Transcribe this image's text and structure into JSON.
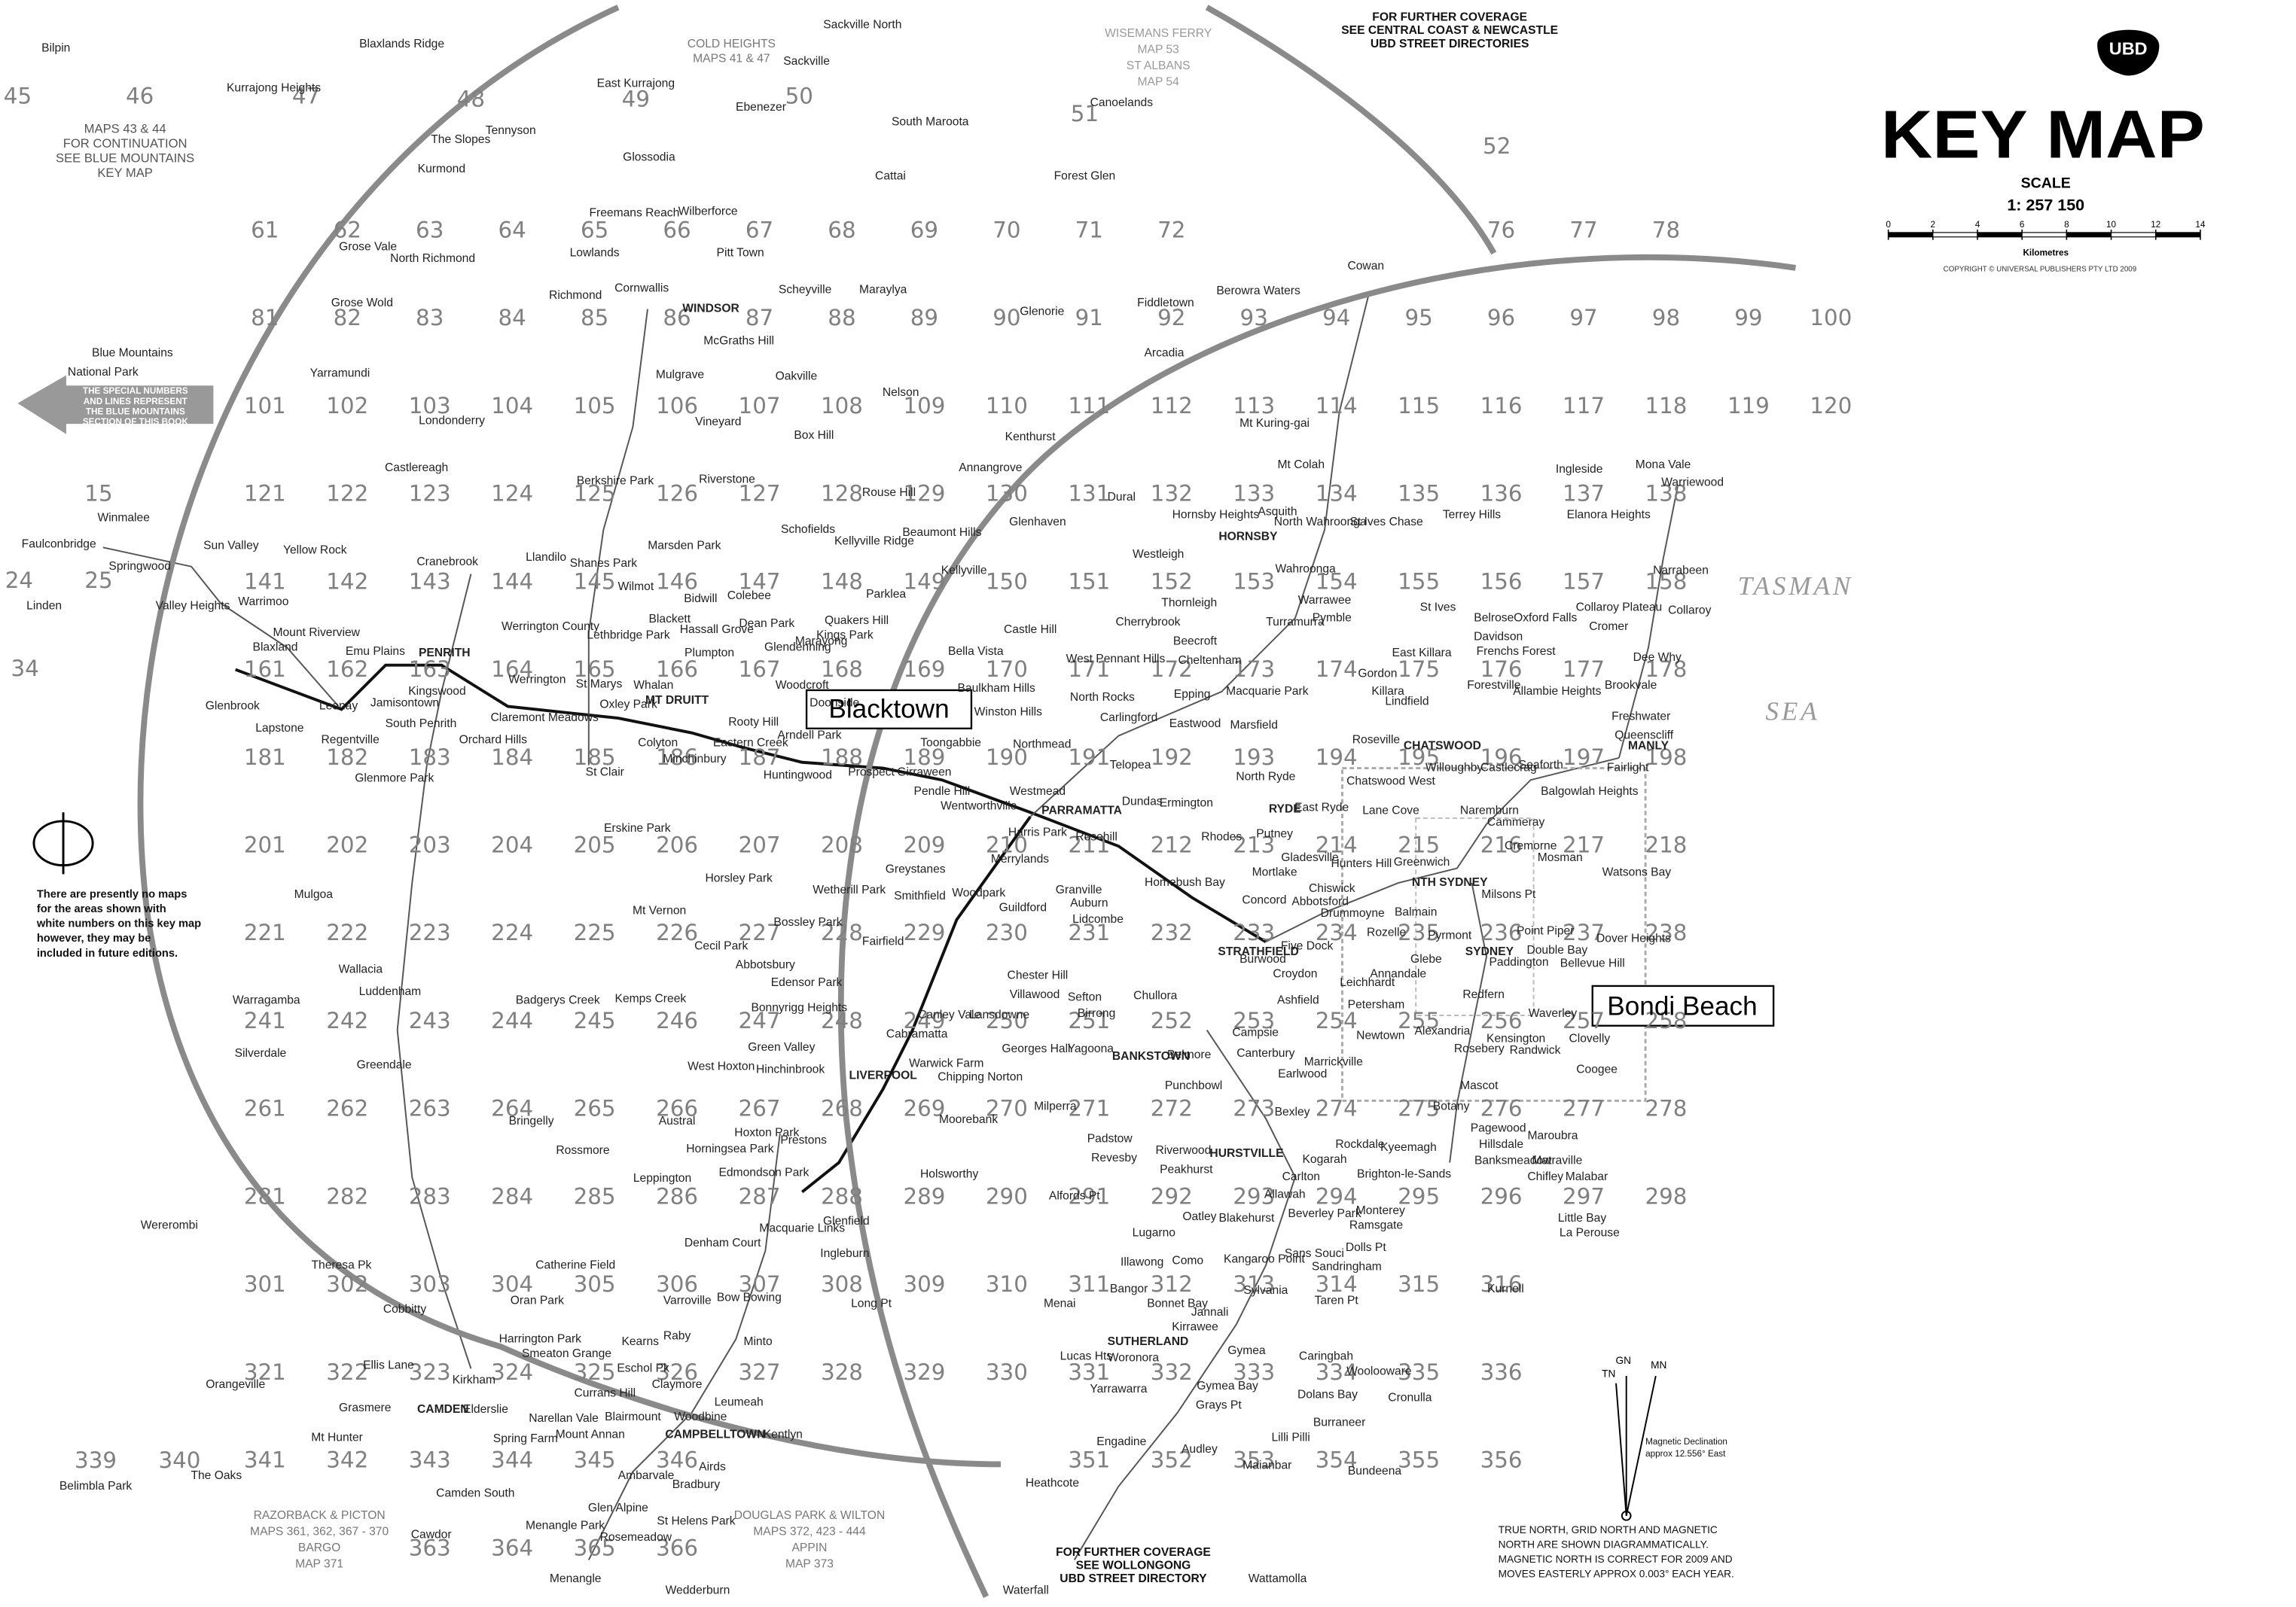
{
  "header": {
    "logo": "UBD",
    "title": "KEY MAP",
    "scale_label": "SCALE",
    "scale": "1: 257 150",
    "scale_ticks": [
      0,
      2,
      4,
      6,
      8,
      10,
      12,
      14
    ],
    "scale_unit": "Kilometres",
    "copyright": "COPYRIGHT © UNIVERSAL PUBLISHERS PTY LTD 2009"
  },
  "callouts": [
    "Blacktown",
    "Bondi Beach"
  ],
  "notes": {
    "blue_mountains": [
      "MAPS 43 & 44",
      "FOR CONTINUATION",
      "SEE BLUE MOUNTAINS",
      "KEY MAP"
    ],
    "missing_maps": [
      "There are presently no maps",
      "for the areas shown with",
      "white numbers on this key map",
      "however, they may be",
      "included in future editions."
    ],
    "north": [
      "TRUE NORTH, GRID NORTH AND MAGNETIC",
      "NORTH ARE SHOWN DIAGRAMMATICALLY.",
      "MAGNETIC NORTH IS CORRECT FOR 2009 AND",
      "MOVES EASTERLY APPROX 0.003° EACH YEAR."
    ],
    "declination": [
      "Magnetic Declination",
      "approx 12.556° East"
    ],
    "north_labels": [
      "GN",
      "TN",
      "MN"
    ],
    "coverage_north": [
      "FOR FURTHER COVERAGE",
      "SEE CENTRAL COAST & NEWCASTLE",
      "UBD STREET DIRECTORIES"
    ],
    "coverage_south": [
      "FOR FURTHER COVERAGE",
      "SEE WOLLONGONG",
      "UBD STREET DIRECTORY"
    ],
    "cold_heights": [
      "COLD HEIGHTS",
      "MAPS 41 & 47"
    ],
    "wisemans": [
      "WISEMANS FERRY",
      "MAP 53",
      "ST ALBANS",
      "MAP 54"
    ],
    "razorback": [
      "RAZORBACK & PICTON",
      "MAPS 361, 362, 367 - 370",
      "BARGO",
      "MAP 371"
    ],
    "douglas": [
      "DOUGLAS PARK & WILTON",
      "MAPS 372, 423 - 444",
      "APPIN",
      "MAP 373"
    ],
    "arrow": [
      "THE SPECIAL NUMBERS",
      "AND LINES REPRESENT",
      "THE BLUE MOUNTAINS",
      "SECTION OF THIS BOOK"
    ]
  },
  "water": [
    "TASMAN",
    "SEA"
  ],
  "special_pages": [
    "45",
    "46",
    "47",
    "48",
    "49",
    "50",
    "51",
    "52",
    "15",
    "24",
    "25",
    "34",
    "339",
    "340"
  ],
  "map_pages": [
    "61",
    "62",
    "63",
    "64",
    "65",
    "66",
    "67",
    "68",
    "69",
    "70",
    "71",
    "72",
    "76",
    "77",
    "78",
    "81",
    "82",
    "83",
    "84",
    "85",
    "86",
    "87",
    "88",
    "89",
    "90",
    "91",
    "92",
    "93",
    "94",
    "95",
    "96",
    "97",
    "98",
    "99",
    "100",
    "101",
    "102",
    "103",
    "104",
    "105",
    "106",
    "107",
    "108",
    "109",
    "110",
    "111",
    "112",
    "113",
    "114",
    "115",
    "116",
    "117",
    "118",
    "119",
    "120",
    "121",
    "122",
    "123",
    "124",
    "125",
    "126",
    "127",
    "128",
    "129",
    "130",
    "131",
    "132",
    "133",
    "134",
    "135",
    "136",
    "137",
    "138",
    "141",
    "142",
    "143",
    "144",
    "145",
    "146",
    "147",
    "148",
    "149",
    "150",
    "151",
    "152",
    "153",
    "154",
    "155",
    "156",
    "157",
    "158",
    "161",
    "162",
    "163",
    "164",
    "165",
    "166",
    "167",
    "168",
    "169",
    "170",
    "171",
    "172",
    "173",
    "174",
    "175",
    "176",
    "177",
    "178",
    "181",
    "182",
    "183",
    "184",
    "185",
    "186",
    "187",
    "188",
    "189",
    "190",
    "191",
    "192",
    "193",
    "194",
    "195",
    "196",
    "197",
    "198",
    "201",
    "202",
    "203",
    "204",
    "205",
    "206",
    "207",
    "208",
    "209",
    "210",
    "211",
    "212",
    "213",
    "214",
    "215",
    "216",
    "217",
    "218",
    "221",
    "222",
    "223",
    "224",
    "225",
    "226",
    "227",
    "228",
    "229",
    "230",
    "231",
    "232",
    "233",
    "234",
    "235",
    "236",
    "237",
    "238",
    "241",
    "242",
    "243",
    "244",
    "245",
    "246",
    "247",
    "248",
    "249",
    "250",
    "251",
    "252",
    "253",
    "254",
    "255",
    "256",
    "257",
    "258",
    "261",
    "262",
    "263",
    "264",
    "265",
    "266",
    "267",
    "268",
    "269",
    "270",
    "271",
    "272",
    "273",
    "274",
    "275",
    "276",
    "277",
    "278",
    "281",
    "282",
    "283",
    "284",
    "285",
    "286",
    "287",
    "288",
    "289",
    "290",
    "291",
    "292",
    "293",
    "294",
    "295",
    "296",
    "297",
    "298",
    "301",
    "302",
    "303",
    "304",
    "305",
    "306",
    "307",
    "308",
    "309",
    "310",
    "311",
    "312",
    "313",
    "314",
    "315",
    "316",
    "321",
    "322",
    "323",
    "324",
    "325",
    "326",
    "327",
    "328",
    "329",
    "330",
    "331",
    "332",
    "333",
    "334",
    "335",
    "336",
    "341",
    "342",
    "343",
    "344",
    "345",
    "346",
    "351",
    "352",
    "353",
    "354",
    "355",
    "356",
    "363",
    "364",
    "365",
    "366"
  ],
  "places": [
    "Bilpin",
    "Blaxlands Ridge",
    "Kurrajong Heights",
    "Sackville North",
    "Sackville",
    "Ebenezer",
    "South Maroota",
    "Canoelands",
    "The Slopes",
    "Tennyson",
    "East Kurrajong",
    "Glossodia",
    "Kurmond",
    "Cattai",
    "Forest Glen",
    "Freemans Reach",
    "Wilberforce",
    "Grose Vale",
    "North Richmond",
    "Lowlands",
    "Pitt Town",
    "Cornwallis",
    "Richmond",
    "Scheyville",
    "Maraylya",
    "Grose Wold",
    "WINDSOR",
    "McGraths Hill",
    "Glenorie",
    "Fiddletown",
    "Berowra Waters",
    "Cowan",
    "Arcadia",
    "Yarramundi",
    "Oakville",
    "Nelson",
    "Mulgrave",
    "Londonderry",
    "Vineyard",
    "Box Hill",
    "Kenthurst",
    "Mt Kuring-gai",
    "Castlereagh",
    "Berkshire Park",
    "Riverstone",
    "Rouse Hill",
    "Annangrove",
    "Dural",
    "Mt Colah",
    "Hornsby Heights",
    "Asquith",
    "North Wahroonga",
    "St Ives Chase",
    "Terrey Hills",
    "Ingleside",
    "Mona Vale",
    "Warriewood",
    "Elanora Heights",
    "Faulconbridge",
    "Winmalee",
    "Springwood",
    "Sun Valley",
    "Yellow Rock",
    "Llandilo",
    "Shanes Park",
    "Marsden Park",
    "Schofields",
    "Kellyville Ridge",
    "Beaumont Hills",
    "Glenhaven",
    "HORNSBY",
    "Westleigh",
    "Cranebrook",
    "Linden",
    "Valley Heights",
    "Warrimoo",
    "Wilmot",
    "Bidwill",
    "Colebee",
    "Parklea",
    "Kellyville",
    "Castle Hill",
    "Cherrybrook",
    "Thornleigh",
    "Wahroonga",
    "Warrawee",
    "Turramurra",
    "Pymble",
    "St Ives",
    "Belrose",
    "Oxford Falls",
    "Collaroy Plateau",
    "Collaroy",
    "Narrabeen",
    "Mount Riverview",
    "Emu Plains",
    "PENRITH",
    "Werrington County",
    "Lethbridge Park",
    "Blackett",
    "Hassall Grove",
    "Dean Park",
    "Quakers Hill",
    "Kings Park",
    "Marayong",
    "West Pennant Hills",
    "Beecroft",
    "Cheltenham",
    "Gordon",
    "Killara",
    "East Killara",
    "Davidson",
    "Frenchs Forest",
    "Cromer",
    "Dee Why",
    "Blaxland",
    "Glenbrook",
    "Leonay",
    "Jamisontown",
    "Kingswood",
    "Werrington",
    "St Marys",
    "Whalan",
    "Plumpton",
    "Glendenning",
    "Woodcroft",
    "Doonside",
    "Bella Vista",
    "Baulkham Hills",
    "North Rocks",
    "Epping",
    "Carlingford",
    "Marsfield",
    "Macquarie Park",
    "Lindfield",
    "Roseville",
    "Forestville",
    "Allambie Heights",
    "Brookvale",
    "Freshwater",
    "Queenscliff",
    "MANLY",
    "Lapstone",
    "South Penrith",
    "Claremont Meadows",
    "Orchard Hills",
    "MT DRUITT",
    "Oxley Park",
    "Colyton",
    "Minchinbury",
    "Rooty Hill",
    "Eastern Creek",
    "Arndell Park",
    "Huntingwood",
    "Prospect",
    "Girraween",
    "Toongabbie",
    "Winston Hills",
    "Northmead",
    "Telopea",
    "Eastwood",
    "CHATSWOOD",
    "Willoughby",
    "Castlecrag",
    "Seaforth",
    "Fairlight",
    "Regentville",
    "Glenmore Park",
    "St Clair",
    "Erskine Park",
    "Pendle Hill",
    "Wentworthville",
    "Westmead",
    "PARRAMATTA",
    "Dundas",
    "Ermington",
    "RYDE",
    "North Ryde",
    "East Ryde",
    "Chatswood West",
    "Lane Cove",
    "Naremburn",
    "Cammeray",
    "Balgowlah Heights",
    "Greystanes",
    "Merrylands",
    "Harris Park",
    "Rosehill",
    "Rhodes",
    "Putney",
    "Gladesville",
    "Hunters Hill",
    "Greenwich",
    "NTH SYDNEY",
    "Mosman",
    "Cremorne",
    "Horsley Park",
    "Wetherill Park",
    "Smithfield",
    "Woodpark",
    "Guildford",
    "Granville",
    "Auburn",
    "Lidcombe",
    "Homebush Bay",
    "Mortlake",
    "Chiswick",
    "Concord",
    "Abbotsford",
    "Drummoyne",
    "Balmain",
    "Milsons Pt",
    "Watsons Bay",
    "Mulgoa",
    "Mt Vernon",
    "Cecil Park",
    "Bossley Park",
    "Fairfield",
    "Chester Hill",
    "STRATHFIELD",
    "Five Dock",
    "Rozelle",
    "Pyrmont",
    "Point Piper",
    "Dover Heights",
    "SYDNEY",
    "Paddington",
    "Double Bay",
    "Bellevue Hill",
    "Wallacia",
    "Luddenham",
    "Badgerys Creek",
    "Kemps Creek",
    "Abbotsbury",
    "Edensor Park",
    "Bonnyrigg Heights",
    "Cabramatta",
    "Canley Vale",
    "Lansdowne",
    "Villawood",
    "Sefton",
    "Birrong",
    "Chullora",
    "Burwood",
    "Croydon",
    "Ashfield",
    "Petersham",
    "Leichhardt",
    "Annandale",
    "Glebe",
    "Redfern",
    "Waverley",
    "Warragamba",
    "Silverdale",
    "Greendale",
    "West Hoxton",
    "Green Valley",
    "Hinchinbrook",
    "LIVERPOOL",
    "Warwick Farm",
    "Chipping Norton",
    "Georges Hall",
    "Yagoona",
    "BANKSTOWN",
    "Belmore",
    "Campsie",
    "Canterbury",
    "Marrickville",
    "Newtown",
    "Alexandria",
    "Kensington",
    "Randwick",
    "Clovelly",
    "Coogee",
    "Rosebery",
    "Mascot",
    "Bringelly",
    "Austral",
    "Hoxton Park",
    "Prestons",
    "Moorebank",
    "Milperra",
    "Padstow",
    "Punchbowl",
    "Earlwood",
    "Bexley",
    "Rockdale",
    "Kyeemagh",
    "Botany",
    "Pagewood",
    "Maroubra",
    "Matraville",
    "Hillsdale",
    "Banksmeadow",
    "Chifley",
    "Malabar",
    "Rossmore",
    "Leppington",
    "Horningsea Park",
    "Edmondson Park",
    "Holsworthy",
    "Revesby",
    "Riverwood",
    "HURSTVILLE",
    "Kogarah",
    "Carlton",
    "Brighton-le-Sands",
    "Wererombi",
    "Denham Court",
    "Macquarie Links",
    "Glenfield",
    "Ingleburn",
    "Alfords Pt",
    "Lugarno",
    "Peakhurst",
    "Oatley",
    "Blakehurst",
    "Allawah",
    "Beverley Park",
    "Ramsgate",
    "Monterey",
    "Dolls Pt",
    "Little Bay",
    "La Perouse",
    "Theresa Pk",
    "Catherine Field",
    "Bow Bowing",
    "Long Pt",
    "Menai",
    "Bangor",
    "Illawong",
    "Como",
    "Kangaroo Point",
    "Sans Souci",
    "Sandringham",
    "Kurnell",
    "Cobbitty",
    "Oran Park",
    "Harrington Park",
    "Varroville",
    "Minto",
    "Kearns",
    "Eschol Pk",
    "Raby",
    "Bonnet Bay",
    "Jannali",
    "Sylvania",
    "Taren Pt",
    "SUTHERLAND",
    "Woronora",
    "Kirrawee",
    "Gymea",
    "Caringbah",
    "Woolooware",
    "Lucas Hts",
    "Orangeville",
    "Ellis Lane",
    "Kirkham",
    "Smeaton Grange",
    "Currans Hill",
    "Claymore",
    "Leumeah",
    "Yarrawarra",
    "Gymea Bay",
    "Dolans Bay",
    "Cronulla",
    "Grasmere",
    "CAMDEN",
    "Elderslie",
    "Narellan Vale",
    "Blairmount",
    "Woodbine",
    "Mt Hunter",
    "Spring Farm",
    "Mount Annan",
    "CAMPBELLTOWN",
    "Kentlyn",
    "Engadine",
    "Grays Pt",
    "Lilli Pilli",
    "Burraneer",
    "Heathcote",
    "Audley",
    "Maianbar",
    "Bundeena",
    "Belimbla Park",
    "The Oaks",
    "Camden South",
    "Ambarvale",
    "Bradbury",
    "Airds",
    "Glen Alpine",
    "St Helens Park",
    "Menangle Park",
    "Rosemeadow",
    "Cawdor",
    "Menangle",
    "Wedderburn",
    "Waterfall",
    "Wattamolla",
    "Blue Mountains",
    "National Park"
  ]
}
